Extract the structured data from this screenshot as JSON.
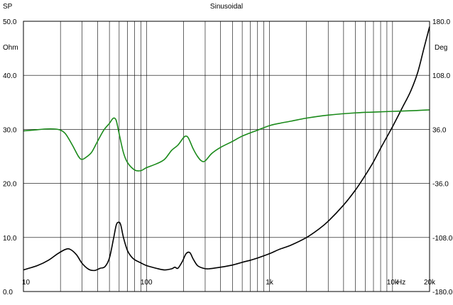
{
  "chart_data": {
    "type": "line",
    "title": "Sinusoidal",
    "corner_label": "SP",
    "left_unit": "Ohm",
    "right_unit": "Deg",
    "x_unit": "Hz",
    "x_scale": "log",
    "xlim": [
      10,
      20000
    ],
    "ylim_left": [
      0,
      50
    ],
    "ylim_right": [
      -180,
      180
    ],
    "grid": true,
    "x_major_ticks": [
      {
        "value": 10,
        "label": "10"
      },
      {
        "value": 100,
        "label": "100"
      },
      {
        "value": 1000,
        "label": "1k"
      },
      {
        "value": 10000,
        "label": "10k"
      },
      {
        "value": 20000,
        "label": "20k"
      }
    ],
    "y_left_ticks": [
      {
        "value": 0,
        "label": "0.0"
      },
      {
        "value": 10,
        "label": "10.0"
      },
      {
        "value": 20,
        "label": "20.0"
      },
      {
        "value": 30,
        "label": "30.0"
      },
      {
        "value": 40,
        "label": "40.0"
      },
      {
        "value": 50,
        "label": "50.0"
      }
    ],
    "y_right_ticks": [
      {
        "value": -180,
        "label": "-180.0"
      },
      {
        "value": -108,
        "label": "-108.0"
      },
      {
        "value": -36,
        "label": "-36.0"
      },
      {
        "value": 36,
        "label": "36.0"
      },
      {
        "value": 108,
        "label": "108.0"
      },
      {
        "value": 180,
        "label": "180.0"
      }
    ],
    "colors": {
      "impedance": "#000000",
      "phase": "#1a8a1a",
      "grid": "#000000",
      "frame": "#000000"
    },
    "series": [
      {
        "axis": "left",
        "color": "#000000",
        "x": [
          10,
          13,
          16,
          19,
          22,
          24,
          27,
          30,
          34,
          38,
          42,
          46,
          50,
          54,
          57,
          60,
          62,
          65,
          70,
          75,
          80,
          90,
          100,
          120,
          140,
          160,
          170,
          180,
          195,
          210,
          225,
          240,
          260,
          290,
          320,
          400,
          500,
          600,
          700,
          800,
          1000,
          1200,
          1500,
          2000,
          2500,
          3000,
          4000,
          5000,
          6000,
          7000,
          8000,
          10000,
          12000,
          14000,
          16000,
          18000,
          20000
        ],
        "values": [
          4.0,
          4.8,
          5.8,
          7.0,
          7.8,
          7.8,
          6.8,
          5.2,
          4.1,
          3.9,
          4.3,
          4.6,
          6.2,
          9.8,
          12.4,
          12.8,
          12.2,
          10.0,
          7.6,
          6.5,
          5.9,
          5.3,
          4.8,
          4.3,
          4.0,
          4.2,
          4.5,
          4.3,
          5.5,
          7.0,
          7.2,
          6.0,
          4.8,
          4.3,
          4.2,
          4.5,
          4.9,
          5.4,
          5.8,
          6.2,
          7.0,
          7.8,
          8.6,
          10.0,
          11.5,
          13.0,
          16.0,
          18.8,
          21.5,
          24.0,
          26.5,
          30.5,
          34.0,
          37.0,
          40.5,
          45.0,
          49.0
        ]
      },
      {
        "axis": "right",
        "color": "#1a8a1a",
        "x": [
          10,
          12,
          15,
          18,
          20,
          22,
          25,
          28,
          30,
          33,
          36,
          40,
          45,
          50,
          53,
          55,
          57,
          60,
          65,
          70,
          80,
          90,
          100,
          120,
          140,
          160,
          180,
          200,
          210,
          220,
          240,
          260,
          280,
          300,
          340,
          400,
          500,
          600,
          800,
          1000,
          1200,
          1500,
          2000,
          3000,
          5000,
          7000,
          10000,
          15000,
          20000
        ],
        "values": [
          34,
          35,
          36.5,
          36.5,
          35,
          30,
          15,
          0,
          -4,
          0,
          6,
          20,
          35,
          44,
          50,
          51,
          47,
          30,
          5,
          -8,
          -18,
          -19,
          -15,
          -10,
          -4,
          8,
          15,
          25,
          27,
          24,
          10,
          0,
          -6,
          -6,
          4,
          12,
          20,
          27,
          35,
          41,
          44,
          47,
          51,
          55,
          58,
          59,
          60,
          61,
          62
        ]
      }
    ]
  }
}
